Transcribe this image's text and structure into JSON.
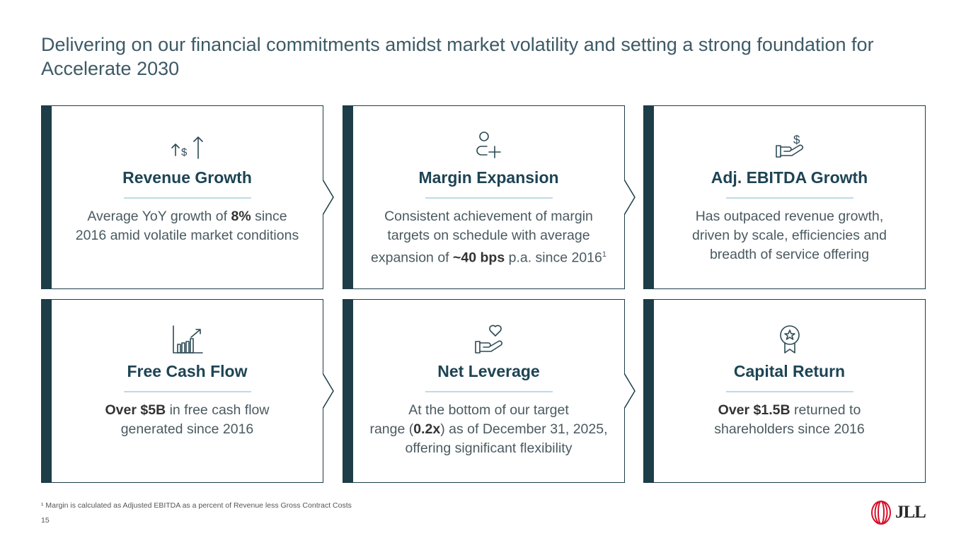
{
  "title": "Delivering on our financial commitments amidst market volatility and setting a strong foundation for Accelerate 2030",
  "cards": [
    {
      "heading": "Revenue Growth",
      "icon": "revenue-growth-icon",
      "pre1": "Average YoY growth of ",
      "bold1": "8%",
      "post1": " since",
      "line2": "2016 amid volatile market conditions"
    },
    {
      "heading": "Margin Expansion",
      "icon": "person-plus-icon",
      "line1": "Consistent achievement of margin",
      "line2": "targets on schedule with average",
      "pre3": "expansion of ",
      "bold3": "~40 bps",
      "post3": " p.a. since 2016",
      "sup3": "1"
    },
    {
      "heading": "Adj. EBITDA Growth",
      "icon": "hand-dollar-icon",
      "line1": "Has outpaced revenue growth,",
      "line2": "driven by scale, efficiencies and",
      "line3": "breadth of service offering"
    },
    {
      "heading": "Free Cash Flow",
      "icon": "bar-chart-growth-icon",
      "bold1": "Over $5B",
      "post1": " in free cash flow",
      "line2": "generated since 2016"
    },
    {
      "heading": "Net Leverage",
      "icon": "hand-heart-icon",
      "line1": "At the bottom of our target",
      "pre2": "range (",
      "bold2": "0.2x",
      "post2": ") as of December 31, 2025,",
      "line3": "offering significant flexibility"
    },
    {
      "heading": "Capital Return",
      "icon": "award-ribbon-icon",
      "bold1": "Over $1.5B",
      "post1": " returned to",
      "line2": "shareholders since 2016"
    }
  ],
  "footnote": "¹ Margin is calculated as Adjusted EBITDA as a percent of Revenue less Gross Contract Costs",
  "page_number": "15",
  "logo": {
    "text": "JLL",
    "color": "#d6112c"
  },
  "colors": {
    "accent": "#1d3d48",
    "rule": "#bfdbe6",
    "heading": "#1d4454"
  }
}
